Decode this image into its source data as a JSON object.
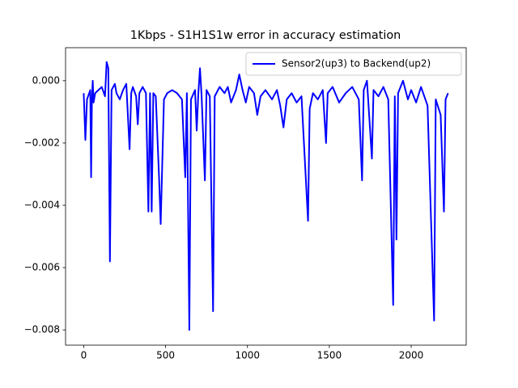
{
  "chart_data": {
    "type": "line",
    "title": "1Kbps - S1H1S1w error in accuracy estimation",
    "x": [
      0,
      10,
      20,
      40,
      45,
      50,
      55,
      60,
      70,
      90,
      110,
      130,
      140,
      150,
      160,
      170,
      190,
      200,
      220,
      240,
      260,
      280,
      290,
      300,
      320,
      330,
      340,
      360,
      380,
      395,
      405,
      415,
      425,
      440,
      460,
      470,
      490,
      510,
      540,
      570,
      600,
      620,
      630,
      645,
      655,
      680,
      690,
      700,
      710,
      720,
      740,
      750,
      770,
      790,
      800,
      830,
      860,
      880,
      900,
      930,
      950,
      970,
      990,
      1010,
      1040,
      1060,
      1080,
      1110,
      1150,
      1180,
      1200,
      1220,
      1240,
      1270,
      1300,
      1330,
      1370,
      1380,
      1400,
      1430,
      1460,
      1480,
      1490,
      1520,
      1560,
      1600,
      1640,
      1680,
      1700,
      1710,
      1730,
      1760,
      1770,
      1800,
      1830,
      1860,
      1890,
      1900,
      1910,
      1920,
      1950,
      1980,
      2000,
      2030,
      2060,
      2100,
      2140,
      2150,
      2180,
      2200,
      2210,
      2225
    ],
    "series": [
      {
        "name": "Sensor2(up3) to Backend(up2)",
        "color": "#0000ff",
        "values": [
          -0.0004,
          -0.0019,
          -0.0006,
          -0.0003,
          -0.0031,
          -0.0006,
          0.0,
          -0.0007,
          -0.0004,
          -0.0003,
          -0.0002,
          -0.0005,
          0.0006,
          0.0004,
          -0.0058,
          -0.0003,
          -0.0001,
          -0.0004,
          -0.0006,
          -0.0003,
          -0.0001,
          -0.0022,
          -0.0004,
          -0.0002,
          -0.0005,
          -0.0014,
          -0.0004,
          -0.0002,
          -0.0004,
          -0.0042,
          -0.0004,
          -0.0042,
          -0.0004,
          -0.0005,
          -0.0031,
          -0.0046,
          -0.0006,
          -0.0004,
          -0.0003,
          -0.0004,
          -0.0006,
          -0.0031,
          -0.0004,
          -0.008,
          -0.0006,
          -0.0003,
          -0.0016,
          -0.0004,
          0.0004,
          -0.0005,
          -0.0032,
          -0.0003,
          -0.0005,
          -0.0074,
          -0.0005,
          -0.0002,
          -0.0004,
          -0.0002,
          -0.0007,
          -0.0003,
          0.0002,
          -0.0003,
          -0.0007,
          -0.0002,
          -0.0004,
          -0.0011,
          -0.0005,
          -0.0003,
          -0.0006,
          -0.0003,
          -0.0008,
          -0.0015,
          -0.0006,
          -0.0004,
          -0.0007,
          -0.0005,
          -0.0045,
          -0.0009,
          -0.0004,
          -0.0006,
          -0.0003,
          -0.002,
          -0.0004,
          -0.0002,
          -0.0007,
          -0.0004,
          -0.0002,
          -0.0006,
          -0.0032,
          -0.0003,
          0.0,
          -0.0025,
          -0.0003,
          -0.0005,
          -0.0002,
          -0.0006,
          -0.0072,
          -0.0005,
          -0.0051,
          -0.0004,
          0.0,
          -0.0006,
          -0.0003,
          -0.0007,
          -0.0002,
          -0.0008,
          -0.0077,
          -0.0006,
          -0.0011,
          -0.0042,
          -0.0006,
          -0.0004
        ]
      }
    ],
    "xlim": [
      -111,
      2336
    ],
    "ylim": [
      -0.00849,
      0.00106
    ],
    "xticks": [
      0,
      500,
      1000,
      1500,
      2000
    ],
    "yticks": [
      {
        "value": -0.008,
        "label": "−0.008"
      },
      {
        "value": -0.006,
        "label": "−0.006"
      },
      {
        "value": -0.004,
        "label": "−0.004"
      },
      {
        "value": -0.002,
        "label": "−0.002"
      },
      {
        "value": 0,
        "label": "0.000"
      }
    ],
    "legend": "upper right"
  }
}
